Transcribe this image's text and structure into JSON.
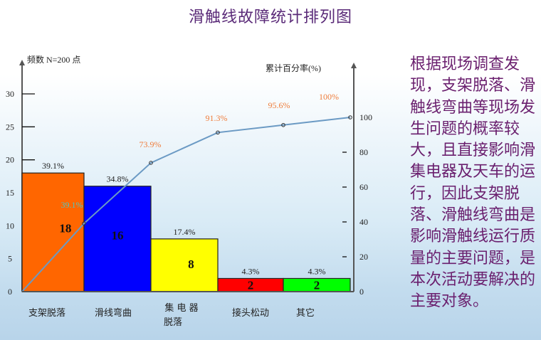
{
  "title": "滑触线故障统计排列图",
  "side_text": "根据现场调查发现，支架脱落、滑触线弯曲等现场发生问题的概率较大，且直接影响滑集电器及天车的运行，因此支架脱落、滑触线弯曲是影响滑触线运行质量的主要问题，是本次活动要解决的主要对象。",
  "chart_data": {
    "type": "bar",
    "title": "滑触线故障统计排列图",
    "subtype": "pareto",
    "categories": [
      "支架脱落",
      "滑线弯曲",
      "集电器脱落",
      "接头松动",
      "其它"
    ],
    "category_labels": [
      {
        "line1": "支架脱落",
        "line2": ""
      },
      {
        "line1": "滑线弯曲",
        "line2": ""
      },
      {
        "line1": "集 电 器",
        "line2": "脱落"
      },
      {
        "line1": "接头松动",
        "line2": ""
      },
      {
        "line1": "其它",
        "line2": ""
      }
    ],
    "series": [
      {
        "name": "频数",
        "type": "bar",
        "values": [
          18,
          16,
          8,
          2,
          2
        ],
        "colors": [
          "#ff6600",
          "#0000ff",
          "#ffff00",
          "#ff0000",
          "#00ff00"
        ],
        "percent_labels": [
          "39.1%",
          "34.8%",
          "17.4%",
          "4.3%",
          "4.3%"
        ]
      },
      {
        "name": "累计百分率",
        "type": "line",
        "values": [
          39.1,
          73.9,
          91.3,
          95.6,
          100
        ],
        "labels": [
          "39.1%",
          "73.9%",
          "91.3%",
          "95.6%",
          "100%"
        ],
        "color": "#6b9ac4"
      }
    ],
    "ylabel": "频数 N=200 点",
    "y2label": "累计百分率(%)",
    "ylim": [
      0,
      30
    ],
    "y_ticks": [
      "0",
      "5",
      "10",
      "15",
      "20",
      "25",
      "30"
    ],
    "y2lim": [
      0,
      100
    ],
    "y2_ticks": [
      "0",
      "20",
      "40",
      "60",
      "80",
      "100"
    ],
    "grid": false,
    "legend": "none"
  }
}
